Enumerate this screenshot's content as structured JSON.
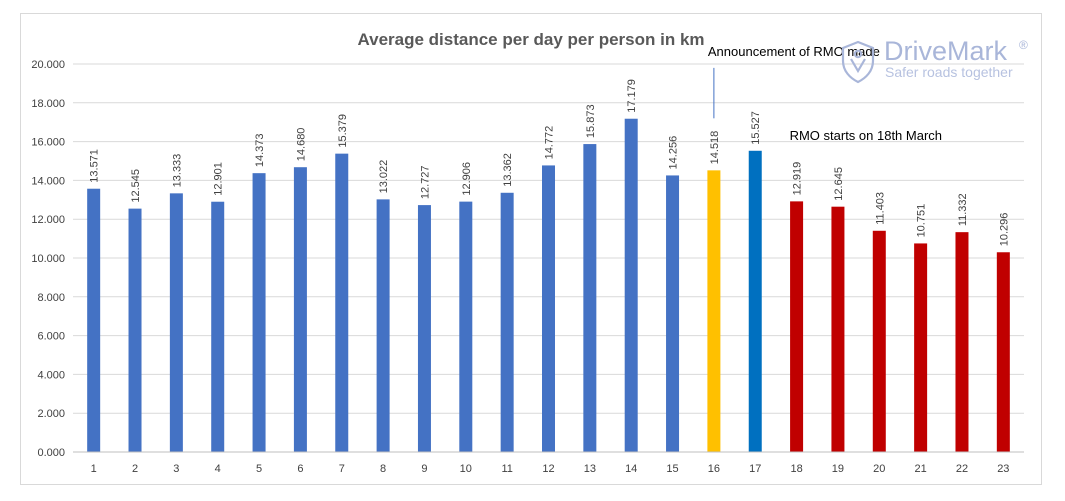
{
  "chart_data": {
    "type": "bar",
    "title": "Average distance per day per person in km",
    "xlabel": "",
    "ylabel": "",
    "ylim": [
      0,
      20
    ],
    "yticks": [
      "0.000",
      "2.000",
      "4.000",
      "6.000",
      "8.000",
      "10.000",
      "12.000",
      "14.000",
      "16.000",
      "18.000",
      "20.000"
    ],
    "grid": true,
    "legend": "none",
    "categories": [
      "1",
      "2",
      "3",
      "4",
      "5",
      "6",
      "7",
      "8",
      "9",
      "10",
      "11",
      "12",
      "13",
      "14",
      "15",
      "16",
      "17",
      "18",
      "19",
      "20",
      "21",
      "22",
      "23"
    ],
    "values": [
      13.571,
      12.545,
      13.333,
      12.901,
      14.373,
      14.68,
      15.379,
      13.022,
      12.727,
      12.906,
      13.362,
      14.772,
      15.873,
      17.179,
      14.256,
      14.518,
      15.527,
      12.919,
      12.645,
      11.403,
      10.751,
      11.332,
      10.296
    ],
    "value_labels": [
      "13.571",
      "12.545",
      "13.333",
      "12.901",
      "14.373",
      "14.680",
      "15.379",
      "13.022",
      "12.727",
      "12.906",
      "13.362",
      "14.772",
      "15.873",
      "17.179",
      "14.256",
      "14.518",
      "15.527",
      "12.919",
      "12.645",
      "11.403",
      "10.751",
      "11.332",
      "10.296"
    ],
    "bar_colors": [
      "#4472c4",
      "#4472c4",
      "#4472c4",
      "#4472c4",
      "#4472c4",
      "#4472c4",
      "#4472c4",
      "#4472c4",
      "#4472c4",
      "#4472c4",
      "#4472c4",
      "#4472c4",
      "#4472c4",
      "#4472c4",
      "#4472c4",
      "#ffc000",
      "#0070c0",
      "#c00000",
      "#c00000",
      "#c00000",
      "#c00000",
      "#c00000",
      "#c00000"
    ],
    "annotations": [
      {
        "text": "Announcement of RMO made",
        "category": "16",
        "line_from": 17.2,
        "line_to": 19.8
      },
      {
        "text": "RMO starts on 18th March",
        "category": "18"
      }
    ]
  },
  "logo": {
    "name": "DriveMark",
    "registered": "®",
    "tagline": "Safer roads together"
  },
  "colors": {
    "grid": "#d9d9d9",
    "axis": "#bfbfbf",
    "logo": "#a9b6d9"
  }
}
